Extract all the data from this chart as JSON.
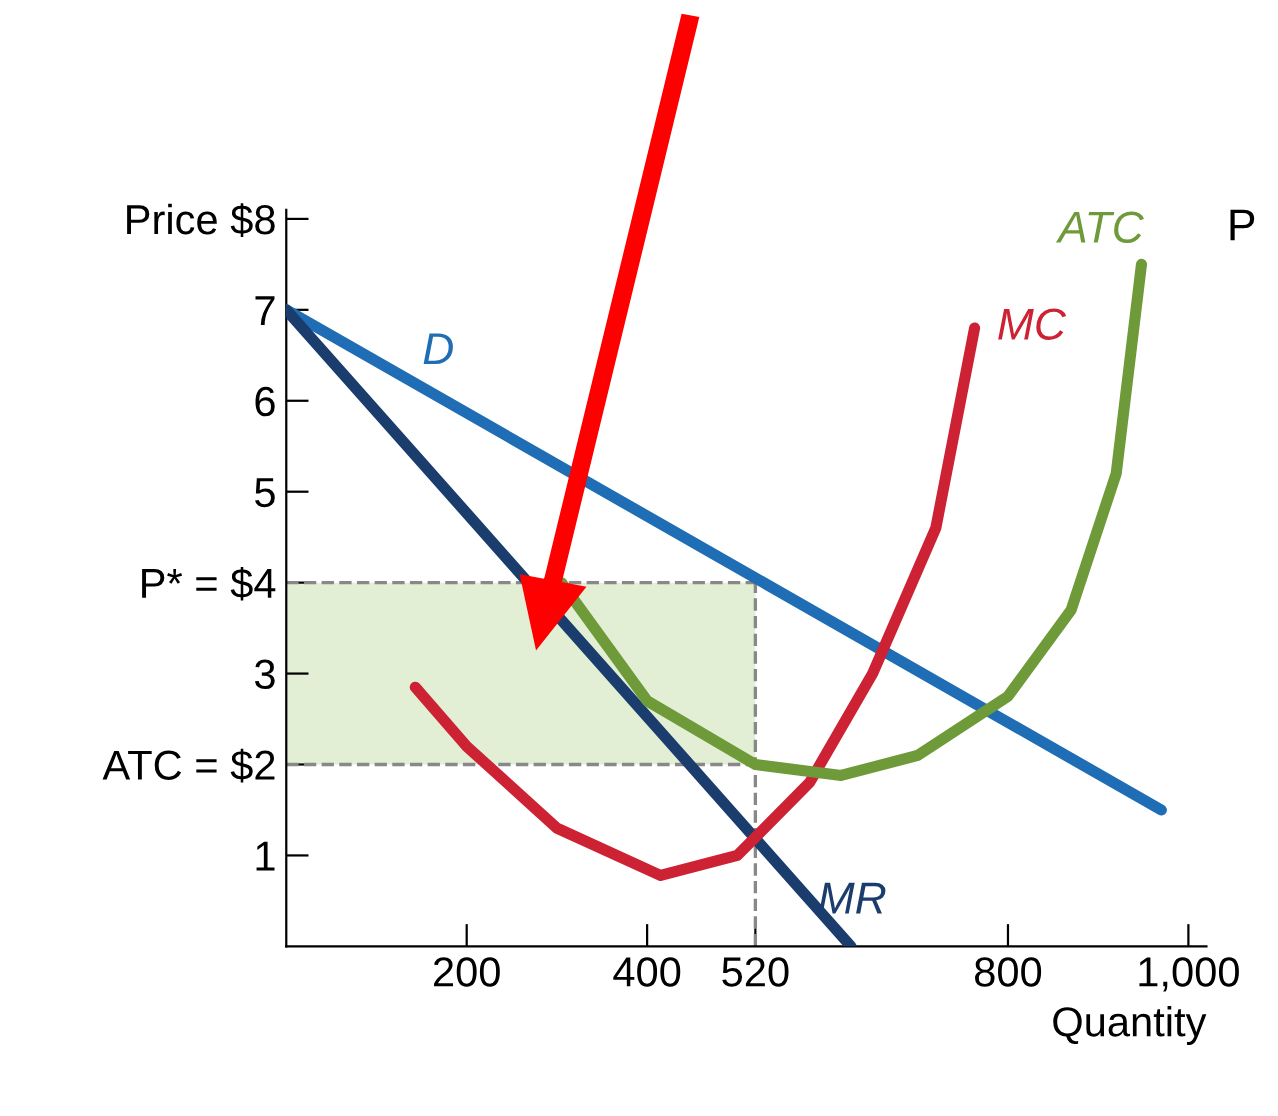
{
  "chart_data": {
    "type": "line",
    "xlabel": "Quantity",
    "xlim": [
      0,
      1020
    ],
    "ylim": [
      0,
      8.1
    ],
    "xticks": [
      200,
      400,
      520,
      800,
      {
        "value": 1000,
        "label": "1,000"
      }
    ],
    "yticks": [
      1,
      {
        "value": 2,
        "label": "ATC = $2"
      },
      3,
      {
        "value": 4,
        "label": "P* = $4"
      },
      5,
      6,
      7,
      {
        "value": 8,
        "label": "Price $8"
      }
    ],
    "series": [
      {
        "name": "D",
        "color": "#1f6db4",
        "x": [
          0,
          970
        ],
        "values": [
          7,
          1.5
        ]
      },
      {
        "name": "MR",
        "color": "#1b3d6d",
        "x": [
          0,
          626
        ],
        "values": [
          7,
          0
        ]
      },
      {
        "name": "MC",
        "color": "#cc2233",
        "x": [
          143,
          200,
          300,
          415,
          500,
          580,
          650,
          720,
          763
        ],
        "values": [
          2.85,
          2.2,
          1.3,
          0.78,
          1.0,
          1.8,
          3.0,
          4.6,
          6.8
        ]
      },
      {
        "name": "ATC",
        "color": "#6e9a3a",
        "x": [
          305,
          400,
          520,
          615,
          700,
          800,
          870,
          920,
          948
        ],
        "values": [
          4.0,
          2.7,
          2.0,
          1.88,
          2.1,
          2.75,
          3.7,
          5.2,
          7.5
        ]
      }
    ],
    "ref_lines": [
      {
        "axis": "y",
        "value": 4,
        "color": "#888888",
        "line_style": "dashed"
      },
      {
        "axis": "y",
        "value": 2,
        "color": "#888888",
        "line_style": "dashed"
      },
      {
        "axis": "x",
        "value": 520,
        "color": "#888888",
        "line_style": "dashed"
      }
    ],
    "bands": [
      {
        "axis": "y",
        "from": 2,
        "to": 4,
        "color": "#e2efd4"
      }
    ],
    "annotations": [
      "P"
    ],
    "grid": false,
    "legend": false,
    "marker": "none",
    "line_style": "solid"
  }
}
